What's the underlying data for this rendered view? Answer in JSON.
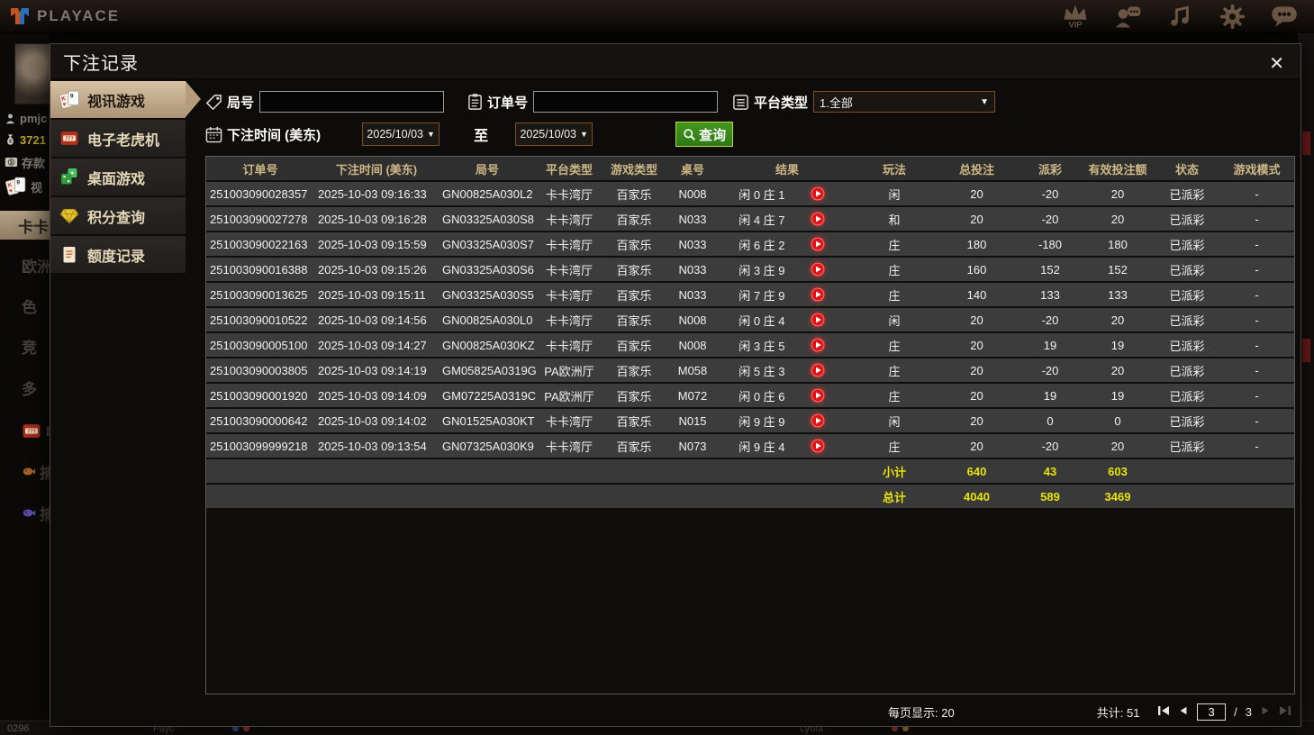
{
  "topbar": {
    "brand": "PLAYACE",
    "icons": [
      {
        "name": "vip-crown",
        "label": "VIP"
      },
      {
        "name": "customer-service"
      },
      {
        "name": "music"
      },
      {
        "name": "settings-gear"
      },
      {
        "name": "chat-bubble"
      }
    ]
  },
  "background": {
    "sidebar": [
      {
        "icon": "person",
        "label": "pmjc",
        "cls": ""
      },
      {
        "icon": "moneybag",
        "label": "3721",
        "cls": "yellow"
      },
      {
        "icon": "dollar",
        "label": "存款",
        "cls": ""
      },
      {
        "icon": "cards",
        "label": "视",
        "cls": ""
      },
      {
        "icon": "",
        "label": "卡卡",
        "cls": "active-cat"
      },
      {
        "icon": "",
        "label": "欧洲",
        "cls": "big"
      },
      {
        "icon": "",
        "label": "色",
        "cls": "big"
      },
      {
        "icon": "",
        "label": "竞",
        "cls": "big"
      },
      {
        "icon": "",
        "label": "多",
        "cls": "big"
      },
      {
        "icon": "slots",
        "label": "电子",
        "cls": "big"
      },
      {
        "icon": "fish",
        "label": "捕",
        "cls": "big"
      },
      {
        "icon": "fish2",
        "label": "捕",
        "cls": "big"
      }
    ],
    "bottom": [
      "0296",
      "Fayc",
      "Lydia"
    ]
  },
  "dialog": {
    "title": "下注记录",
    "close_glyph": "✕",
    "tabs": [
      {
        "icon": "cards",
        "label": "视讯游戏",
        "active": true
      },
      {
        "icon": "slots",
        "label": "电子老虎机",
        "active": false
      },
      {
        "icon": "dice",
        "label": "桌面游戏",
        "active": false
      },
      {
        "icon": "diamond",
        "label": "积分查询",
        "active": false
      },
      {
        "icon": "doc",
        "label": "额度记录",
        "active": false
      }
    ],
    "filters": {
      "round_label": "局号",
      "round_value": "",
      "order_label": "订单号",
      "order_value": "",
      "platform_label": "平台类型",
      "platform_value": "1.全部",
      "time_label": "下注时间 (美东)",
      "date_from": "2025/10/03",
      "to_label": "至",
      "date_to": "2025/10/03",
      "search_label": "查询",
      "caret": "▼"
    },
    "table": {
      "headers": [
        "订单号",
        "下注时间 (美东)",
        "局号",
        "平台类型",
        "游戏类型",
        "桌号",
        "结果",
        "玩法",
        "总投注",
        "派彩",
        "有效投注额",
        "状态",
        "游戏模式"
      ],
      "rows": [
        {
          "order": "251003090028357",
          "time": "2025-10-03 09:16:33",
          "round": "GN00825A030L2",
          "platform": "卡卡湾厅",
          "game": "百家乐",
          "table_no": "N008",
          "result": "闲 0 庄 1",
          "play": "闲",
          "bet": "20",
          "payout": "-20",
          "valid": "20",
          "status": "已派彩",
          "mode": "-"
        },
        {
          "order": "251003090027278",
          "time": "2025-10-03 09:16:28",
          "round": "GN03325A030S8",
          "platform": "卡卡湾厅",
          "game": "百家乐",
          "table_no": "N033",
          "result": "闲 4 庄 7",
          "play": "和",
          "bet": "20",
          "payout": "-20",
          "valid": "20",
          "status": "已派彩",
          "mode": "-"
        },
        {
          "order": "251003090022163",
          "time": "2025-10-03 09:15:59",
          "round": "GN03325A030S7",
          "platform": "卡卡湾厅",
          "game": "百家乐",
          "table_no": "N033",
          "result": "闲 6 庄 2",
          "play": "庄",
          "bet": "180",
          "payout": "-180",
          "valid": "180",
          "status": "已派彩",
          "mode": "-"
        },
        {
          "order": "251003090016388",
          "time": "2025-10-03 09:15:26",
          "round": "GN03325A030S6",
          "platform": "卡卡湾厅",
          "game": "百家乐",
          "table_no": "N033",
          "result": "闲 3 庄 9",
          "play": "庄",
          "bet": "160",
          "payout": "152",
          "valid": "152",
          "status": "已派彩",
          "mode": "-"
        },
        {
          "order": "251003090013625",
          "time": "2025-10-03 09:15:11",
          "round": "GN03325A030S5",
          "platform": "卡卡湾厅",
          "game": "百家乐",
          "table_no": "N033",
          "result": "闲 7 庄 9",
          "play": "庄",
          "bet": "140",
          "payout": "133",
          "valid": "133",
          "status": "已派彩",
          "mode": "-"
        },
        {
          "order": "251003090010522",
          "time": "2025-10-03 09:14:56",
          "round": "GN00825A030L0",
          "platform": "卡卡湾厅",
          "game": "百家乐",
          "table_no": "N008",
          "result": "闲 0 庄 4",
          "play": "闲",
          "bet": "20",
          "payout": "-20",
          "valid": "20",
          "status": "已派彩",
          "mode": "-"
        },
        {
          "order": "251003090005100",
          "time": "2025-10-03 09:14:27",
          "round": "GN00825A030KZ",
          "platform": "卡卡湾厅",
          "game": "百家乐",
          "table_no": "N008",
          "result": "闲 3 庄 5",
          "play": "庄",
          "bet": "20",
          "payout": "19",
          "valid": "19",
          "status": "已派彩",
          "mode": "-"
        },
        {
          "order": "251003090003805",
          "time": "2025-10-03 09:14:19",
          "round": "GM05825A0319G",
          "platform": "PA欧洲厅",
          "game": "百家乐",
          "table_no": "M058",
          "result": "闲 5 庄 3",
          "play": "庄",
          "bet": "20",
          "payout": "-20",
          "valid": "20",
          "status": "已派彩",
          "mode": "-"
        },
        {
          "order": "251003090001920",
          "time": "2025-10-03 09:14:09",
          "round": "GM07225A0319C",
          "platform": "PA欧洲厅",
          "game": "百家乐",
          "table_no": "M072",
          "result": "闲 0 庄 6",
          "play": "庄",
          "bet": "20",
          "payout": "19",
          "valid": "19",
          "status": "已派彩",
          "mode": "-"
        },
        {
          "order": "251003090000642",
          "time": "2025-10-03 09:14:02",
          "round": "GN01525A030KT",
          "platform": "卡卡湾厅",
          "game": "百家乐",
          "table_no": "N015",
          "result": "闲 9 庄 9",
          "play": "闲",
          "bet": "20",
          "payout": "0",
          "valid": "0",
          "status": "已派彩",
          "mode": "-"
        },
        {
          "order": "251003099999218",
          "time": "2025-10-03 09:13:54",
          "round": "GN07325A030K9",
          "platform": "卡卡湾厅",
          "game": "百家乐",
          "table_no": "N073",
          "result": "闲 9 庄 4",
          "play": "庄",
          "bet": "20",
          "payout": "-20",
          "valid": "20",
          "status": "已派彩",
          "mode": "-"
        }
      ],
      "subtotal": {
        "label": "小计",
        "bet": "640",
        "payout": "43",
        "valid": "603"
      },
      "grand_total": {
        "label": "总计",
        "bet": "4040",
        "payout": "589",
        "valid": "3469"
      }
    },
    "pagination": {
      "per_page_label": "每页显示:",
      "per_page_value": "20",
      "total_label": "共计:",
      "total_value": "51",
      "page": "3",
      "separator": "/",
      "pages": "3"
    }
  }
}
